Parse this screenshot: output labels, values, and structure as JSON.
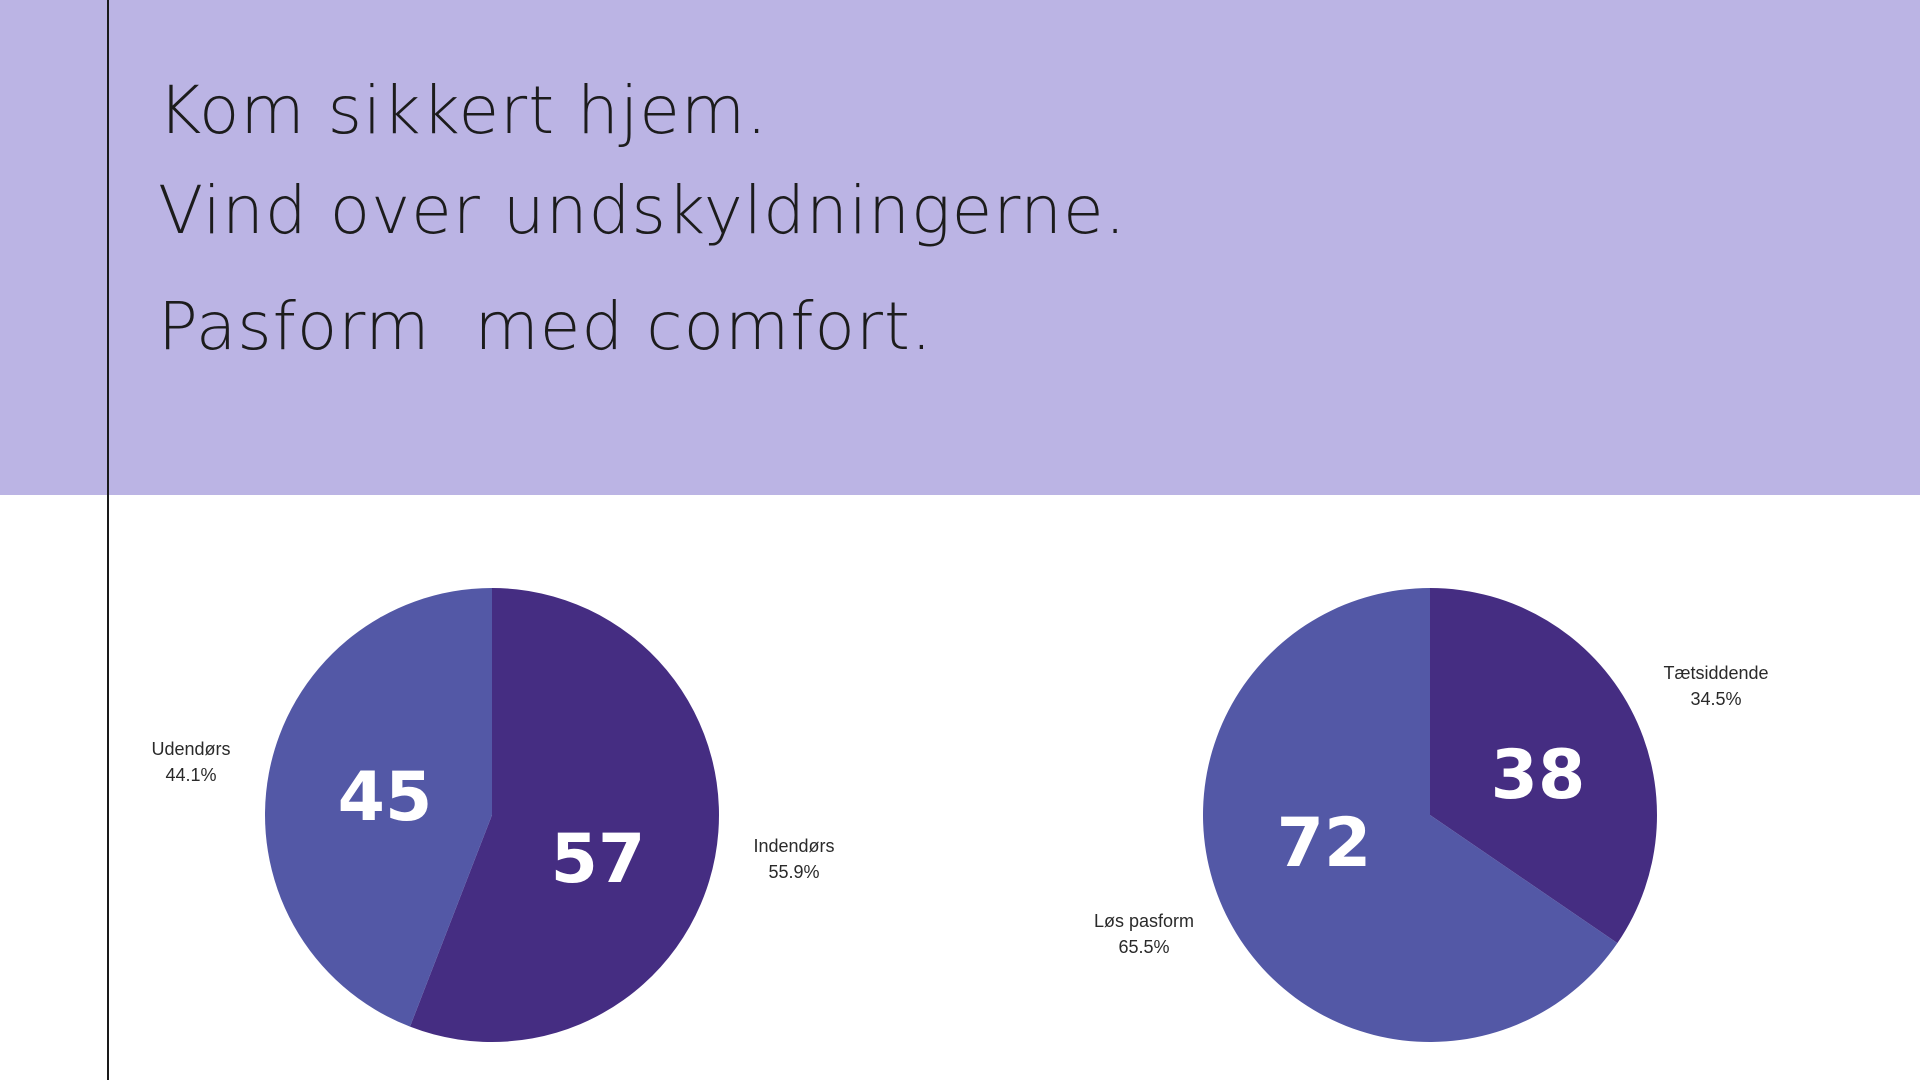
{
  "headlines": [
    "Kom sikkert hjem.",
    "Vind over undskyldningerne.",
    "Pasform  med comfort."
  ],
  "colors": {
    "header_bg": "#bbb4e4",
    "slice_dark": "#452d82",
    "slice_light": "#5358a6"
  },
  "chart_data": [
    {
      "type": "pie",
      "slices": [
        {
          "label": "Indendørs",
          "value": 57,
          "percent": "55.9%",
          "color": "#452d82"
        },
        {
          "label": "Udendørs",
          "value": 45,
          "percent": "44.1%",
          "color": "#5358a6"
        }
      ],
      "show_values": true,
      "legend": "none"
    },
    {
      "type": "pie",
      "slices": [
        {
          "label": "Tætsiddende",
          "value": 38,
          "percent": "34.5%",
          "color": "#452d82"
        },
        {
          "label": "Løs pasform",
          "value": 72,
          "percent": "65.5%",
          "color": "#5358a6"
        }
      ],
      "show_values": true,
      "legend": "none"
    }
  ]
}
